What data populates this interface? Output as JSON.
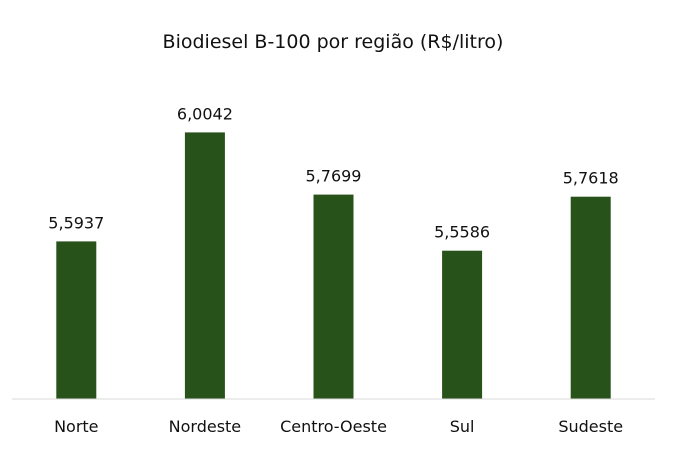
{
  "chart_data": {
    "type": "bar",
    "title": "Biodiesel B-100 por região (R$/litro)",
    "categories": [
      "Norte",
      "Nordeste",
      "Centro-Oeste",
      "Sul",
      "Sudeste"
    ],
    "values": [
      5.5937,
      6.0042,
      5.7699,
      5.5586,
      5.7618
    ],
    "value_labels": [
      "5,5937",
      "6,0042",
      "5,7699",
      "5,5586",
      "5,7618"
    ],
    "xlabel": "",
    "ylabel": "",
    "y_axis_visible": false,
    "grid": false,
    "legend": "none",
    "bar_color": "#27521a",
    "axis_color": "#d9d9d9"
  }
}
